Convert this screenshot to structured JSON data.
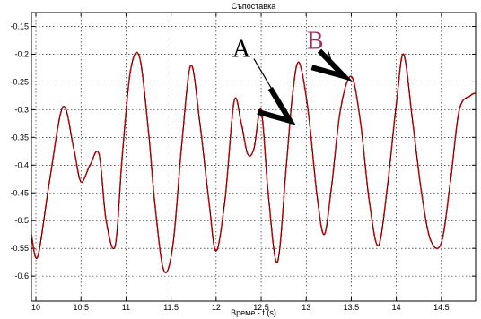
{
  "chart_data": {
    "type": "line",
    "title": "Съпоставка",
    "xlabel": "Време - t (s)",
    "ylabel": "",
    "xlim": [
      9.95,
      14.88
    ],
    "ylim": [
      -0.645,
      -0.125
    ],
    "grid": true,
    "x_ticks": [
      {
        "v": 10,
        "label": "10"
      },
      {
        "v": 10.5,
        "label": "10.5"
      },
      {
        "v": 11,
        "label": "11"
      },
      {
        "v": 11.5,
        "label": "11.5"
      },
      {
        "v": 12,
        "label": "12"
      },
      {
        "v": 12.5,
        "label": "12.5"
      },
      {
        "v": 13,
        "label": "13"
      },
      {
        "v": 13.5,
        "label": "13.5"
      },
      {
        "v": 14,
        "label": "14"
      },
      {
        "v": 14.5,
        "label": "14.5"
      }
    ],
    "y_ticks": [
      {
        "v": -0.15,
        "label": "-0.15"
      },
      {
        "v": -0.2,
        "label": "-0.2"
      },
      {
        "v": -0.25,
        "label": "-0.25"
      },
      {
        "v": -0.3,
        "label": "-0.3"
      },
      {
        "v": -0.35,
        "label": "-0.35"
      },
      {
        "v": -0.4,
        "label": "-0.4"
      },
      {
        "v": -0.45,
        "label": "-0.45"
      },
      {
        "v": -0.5,
        "label": "-0.5"
      },
      {
        "v": -0.55,
        "label": "-0.55"
      },
      {
        "v": -0.6,
        "label": "-0.6"
      }
    ],
    "series": [
      {
        "color": "#000000",
        "style": "solid",
        "x": [
          9.95,
          10.02,
          10.15,
          10.3,
          10.42,
          10.5,
          10.6,
          10.7,
          10.78,
          10.88,
          10.96,
          11.05,
          11.15,
          11.25,
          11.32,
          11.42,
          11.52,
          11.62,
          11.72,
          11.82,
          11.92,
          12.0,
          12.1,
          12.2,
          12.28,
          12.35,
          12.42,
          12.5,
          12.58,
          12.68,
          12.78,
          12.85,
          12.92,
          13.02,
          13.12,
          13.2,
          13.28,
          13.38,
          13.5,
          13.6,
          13.7,
          13.8,
          13.9,
          14.0,
          14.08,
          14.18,
          14.28,
          14.38,
          14.5,
          14.6,
          14.7,
          14.82,
          14.88
        ],
        "y": [
          -0.525,
          -0.565,
          -0.43,
          -0.295,
          -0.37,
          -0.43,
          -0.4,
          -0.38,
          -0.5,
          -0.545,
          -0.38,
          -0.23,
          -0.205,
          -0.34,
          -0.47,
          -0.59,
          -0.545,
          -0.36,
          -0.22,
          -0.325,
          -0.465,
          -0.555,
          -0.46,
          -0.285,
          -0.325,
          -0.38,
          -0.37,
          -0.3,
          -0.455,
          -0.575,
          -0.4,
          -0.27,
          -0.215,
          -0.3,
          -0.455,
          -0.525,
          -0.44,
          -0.3,
          -0.24,
          -0.32,
          -0.465,
          -0.545,
          -0.44,
          -0.29,
          -0.2,
          -0.32,
          -0.45,
          -0.535,
          -0.54,
          -0.43,
          -0.3,
          -0.275,
          -0.27
        ]
      },
      {
        "color": "#cc0000",
        "style": "dashed",
        "x": [
          9.95,
          10.02,
          10.15,
          10.3,
          10.42,
          10.5,
          10.6,
          10.7,
          10.78,
          10.88,
          10.96,
          11.05,
          11.15,
          11.25,
          11.32,
          11.42,
          11.52,
          11.62,
          11.72,
          11.82,
          11.92,
          12.0,
          12.1,
          12.2,
          12.28,
          12.35,
          12.42,
          12.5,
          12.58,
          12.68,
          12.78,
          12.85,
          12.92,
          13.02,
          13.12,
          13.2,
          13.28,
          13.38,
          13.5,
          13.6,
          13.7,
          13.8,
          13.9,
          14.0,
          14.08,
          14.18,
          14.28,
          14.38,
          14.5,
          14.6,
          14.7,
          14.82,
          14.88
        ],
        "y": [
          -0.525,
          -0.565,
          -0.43,
          -0.295,
          -0.37,
          -0.43,
          -0.4,
          -0.38,
          -0.5,
          -0.545,
          -0.38,
          -0.23,
          -0.205,
          -0.34,
          -0.47,
          -0.59,
          -0.545,
          -0.36,
          -0.22,
          -0.325,
          -0.465,
          -0.555,
          -0.46,
          -0.285,
          -0.325,
          -0.38,
          -0.37,
          -0.3,
          -0.455,
          -0.575,
          -0.4,
          -0.27,
          -0.215,
          -0.3,
          -0.455,
          -0.525,
          -0.44,
          -0.3,
          -0.24,
          -0.32,
          -0.465,
          -0.545,
          -0.44,
          -0.29,
          -0.2,
          -0.32,
          -0.45,
          -0.535,
          -0.54,
          -0.43,
          -0.3,
          -0.275,
          -0.27
        ]
      }
    ],
    "annotations": [
      {
        "label": "A",
        "color": "#000000",
        "text_x": 12.28,
        "text_y": -0.205,
        "line_to_x": 12.68,
        "line_to_y": -0.28,
        "arrow_tip_x": 12.82,
        "arrow_tip_y": -0.32
      },
      {
        "label": "B",
        "color": "#993366",
        "text_x": 13.1,
        "text_y": -0.19,
        "line_to_x": 13.3,
        "line_to_y": -0.222,
        "arrow_tip_x": 13.42,
        "arrow_tip_y": -0.24
      }
    ]
  }
}
